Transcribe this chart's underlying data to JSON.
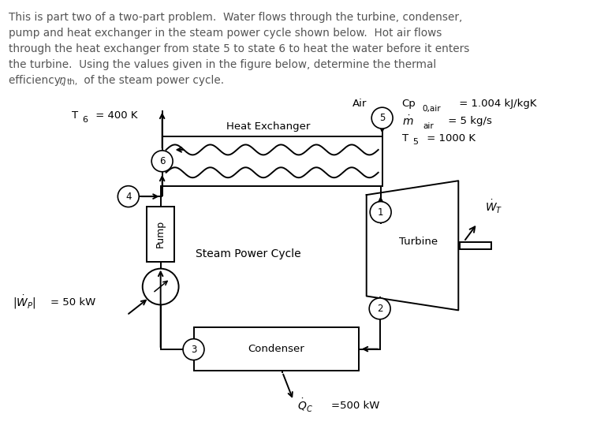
{
  "bg_color": "#ffffff",
  "text_color": "#555555",
  "line_color": "#000000",
  "description_lines": [
    "This is part two of a two-part problem.  Water flows through the turbine, condenser,",
    "pump and heat exchanger in the steam power cycle shown below.  Hot air flows",
    "through the heat exchanger from state 5 to state 6 to heat the water before it enters",
    "the turbine.  Using the values given in the figure below, determine the thermal"
  ],
  "last_line_prefix": "efficiency, ",
  "last_line_eta": "η",
  "last_line_sub": "th,",
  "last_line_suffix": " of the steam power cycle.",
  "heat_exchanger_label": "Heat Exchanger",
  "turbine_label": "Turbine",
  "condenser_label": "Condenser",
  "pump_label": "Pump",
  "steam_cycle_label": "Steam Power Cycle",
  "air_label": "Air",
  "cp_line": "Cp",
  "cp_sub": "0,air",
  "cp_val": " = 1.004 kJ/kgK",
  "mdot_val": " = 5 kg/s",
  "T5_val": " = 1000 K",
  "T6_val": "= 400 K",
  "Wp_val": "= 50 kW",
  "Qc_val": "=500 kW",
  "states": [
    "1",
    "2",
    "3",
    "4",
    "5",
    "6"
  ]
}
